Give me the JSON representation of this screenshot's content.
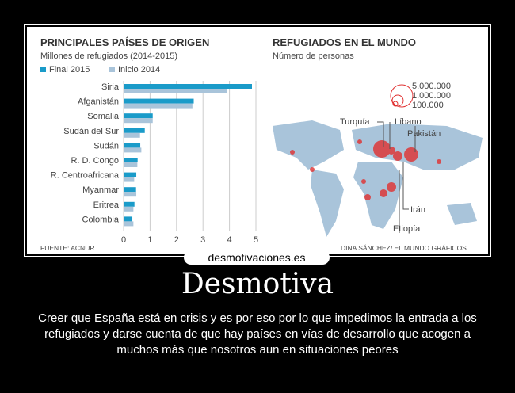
{
  "chart_data": [
    {
      "type": "bar",
      "orientation": "horizontal",
      "title": "PRINCIPALES PAÍSES DE ORIGEN",
      "subtitle": "Millones de refugiados (2014-2015)",
      "categories": [
        "Siria",
        "Afganistán",
        "Somalia",
        "Sudán del Sur",
        "Sudán",
        "R. D. Congo",
        "R. Centroafricana",
        "Myanmar",
        "Eritrea",
        "Colombia"
      ],
      "series": [
        {
          "name": "Final 2015",
          "color": "#1a9bc9",
          "values": [
            4.85,
            2.65,
            1.1,
            0.8,
            0.63,
            0.53,
            0.48,
            0.47,
            0.41,
            0.33
          ]
        },
        {
          "name": "Inicio 2014",
          "color": "#a9c4da",
          "values": [
            3.9,
            2.6,
            1.1,
            0.62,
            0.67,
            0.52,
            0.4,
            0.48,
            0.37,
            0.37
          ]
        }
      ],
      "xticks": [
        "0",
        "1",
        "2",
        "3",
        "4",
        "5"
      ],
      "xlim": [
        0,
        5
      ],
      "grid": true,
      "legend": "top-left",
      "source": "FUENTE: ACNUR."
    },
    {
      "type": "map",
      "title": "REFUGIADOS EN EL MUNDO",
      "subtitle": "Número de personas",
      "size_legend": [
        "5.000.000",
        "1.000.000",
        "100.000"
      ],
      "labels": [
        "Turquía",
        "Líbano",
        "Pakistán",
        "Irán",
        "Etiopía"
      ],
      "credit": "DINA SÁNCHEZ/ EL MUNDO GRÁFICOS"
    }
  ],
  "logo": "desmotivaciones.es",
  "poster": {
    "title": "Desmotiva",
    "caption": "Creer que España está en crisis y es por eso por lo que impedimos la entrada a los refugiados y darse cuenta de que hay países en vías de desarrollo que acogen a muchos más que nosotros aun en situaciones peores"
  }
}
